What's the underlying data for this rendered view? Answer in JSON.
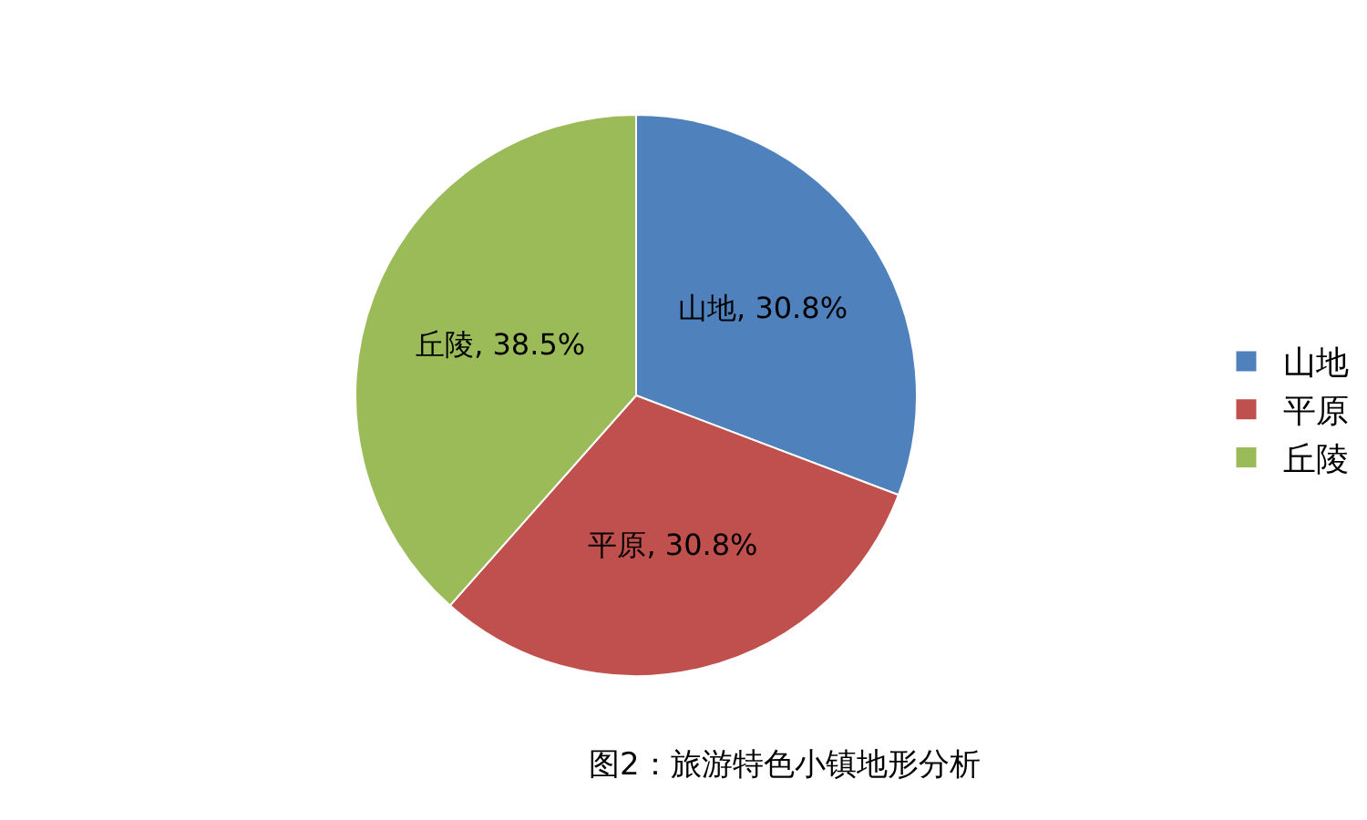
{
  "chart_data": {
    "type": "pie",
    "categories": [
      "山地",
      "平原",
      "丘陵"
    ],
    "values": [
      30.8,
      30.8,
      38.5
    ],
    "colors": [
      "#4f81bd",
      "#c0504d",
      "#9bbb59"
    ],
    "value_labels": [
      "山地, 30.8%",
      "平原, 30.8%",
      "丘陵, 38.5%"
    ],
    "legend": "right",
    "annotations": [
      "图2：旅游特色小镇地形分析"
    ]
  }
}
